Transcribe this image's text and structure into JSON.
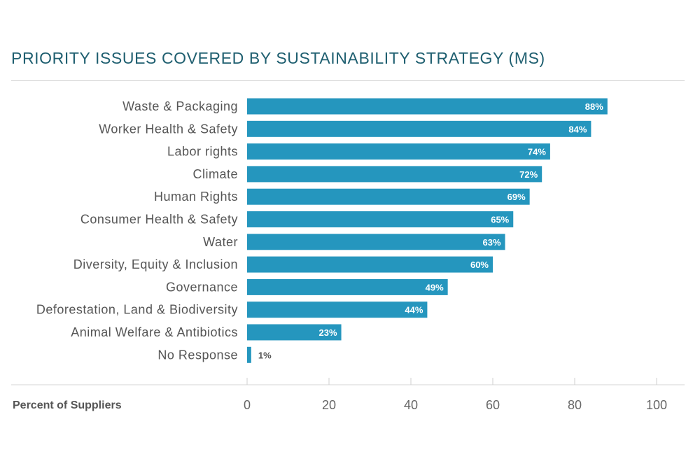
{
  "chart_data": {
    "type": "bar",
    "orientation": "horizontal",
    "title": "PRIORITY ISSUES COVERED BY SUSTAINABILITY STRATEGY (MS)",
    "xlabel": "Percent of Suppliers",
    "categories": [
      "Waste & Packaging",
      "Worker Health & Safety",
      "Labor rights",
      "Climate",
      "Human Rights",
      "Consumer Health & Safety",
      "Water",
      "Diversity, Equity & Inclusion",
      "Governance",
      "Deforestation, Land & Biodiversity",
      "Animal Welfare & Antibiotics",
      "No Response"
    ],
    "values": [
      88,
      84,
      74,
      72,
      69,
      65,
      63,
      60,
      49,
      44,
      23,
      1
    ],
    "value_labels": [
      "88%",
      "84%",
      "74%",
      "72%",
      "69%",
      "65%",
      "63%",
      "60%",
      "49%",
      "44%",
      "23%",
      "1%"
    ],
    "xlim": [
      0,
      100
    ],
    "xticks": [
      0,
      20,
      40,
      60,
      80,
      100
    ],
    "grid": false,
    "legend": "none",
    "colors": {
      "bar": "#2596be",
      "title": "#1f5f70",
      "label_inside": "#ffffff",
      "label_outside": "#555555"
    }
  }
}
